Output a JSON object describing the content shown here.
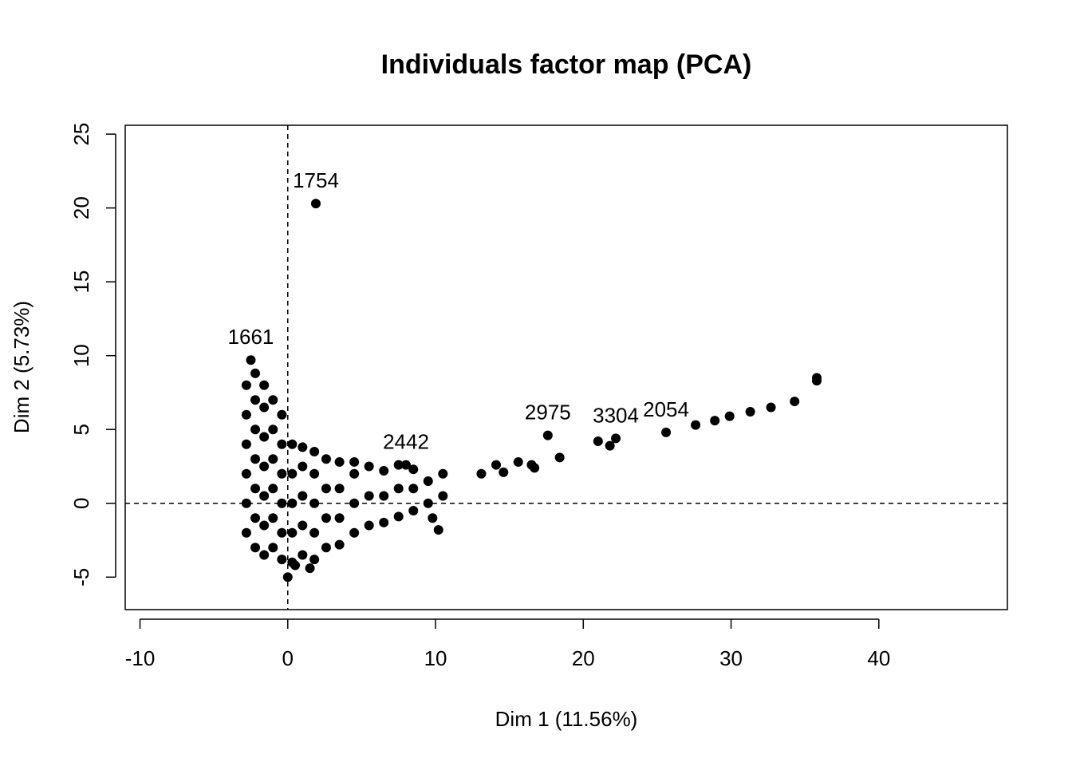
{
  "chart_data": {
    "type": "scatter",
    "title": "Individuals factor map (PCA)",
    "x_label": "Dim 1 (11.56%)",
    "y_label": "Dim 2 (5.73%)",
    "xlim": [
      -11,
      48.7
    ],
    "ylim": [
      -7.2,
      25.6
    ],
    "xticks": [
      -10,
      0,
      10,
      20,
      30,
      40
    ],
    "yticks": [
      -5,
      0,
      5,
      10,
      15,
      20,
      25
    ],
    "hlines": [
      0
    ],
    "vlines": [
      0
    ],
    "series": [
      {
        "color": "#000000",
        "x": [
          1.9,
          -2.5,
          25.6,
          8.0,
          17.6,
          22.2,
          27.6,
          28.9,
          29.9,
          31.3,
          32.7,
          34.3,
          35.8,
          35.8,
          21.0,
          21.8,
          18.4,
          16.7,
          16.5,
          15.6,
          14.6,
          13.1,
          14.1,
          9.8,
          10.2,
          0.0,
          1.5,
          0.5,
          -2.8,
          -2.8,
          -2.8,
          -2.8,
          -2.8,
          -2.8,
          -2.2,
          -2.2,
          -2.2,
          -2.2,
          -2.2,
          -2.2,
          -2.2,
          -1.6,
          -1.6,
          -1.6,
          -1.6,
          -1.6,
          -1.6,
          -1.6,
          -1.0,
          -1.0,
          -1.0,
          -1.0,
          -1.0,
          -1.0,
          -0.4,
          -0.4,
          -0.4,
          -0.4,
          -0.4,
          -0.4,
          0.3,
          0.3,
          0.3,
          0.3,
          0.3,
          1.0,
          1.0,
          1.0,
          1.0,
          1.0,
          1.8,
          1.8,
          1.8,
          1.8,
          1.8,
          2.6,
          2.6,
          2.6,
          2.6,
          3.5,
          3.5,
          3.5,
          3.5,
          4.5,
          4.5,
          4.5,
          4.5,
          5.5,
          5.5,
          5.5,
          6.5,
          6.5,
          6.5,
          7.5,
          7.5,
          7.5,
          8.5,
          8.5,
          8.5,
          9.5,
          9.5,
          10.5,
          10.5
        ],
        "values": [
          20.3,
          9.7,
          4.8,
          2.6,
          4.6,
          4.4,
          5.3,
          5.6,
          5.9,
          6.2,
          6.5,
          6.9,
          8.3,
          8.5,
          4.2,
          3.9,
          3.1,
          2.4,
          2.6,
          2.8,
          2.1,
          2.0,
          2.6,
          -1.0,
          -1.8,
          -5.0,
          -4.4,
          -4.2,
          -2,
          0,
          2,
          4,
          6,
          8,
          -3,
          -1,
          1,
          3,
          5,
          7,
          8.8,
          -3.5,
          -1.5,
          0.5,
          2.5,
          4.5,
          6.5,
          8,
          -3,
          -1,
          1,
          3,
          5,
          7,
          -3.8,
          -2,
          0,
          2,
          4,
          6,
          -4,
          -2,
          0,
          2,
          4,
          -3.5,
          -1.5,
          0.5,
          2.5,
          3.8,
          -3.8,
          -2,
          0,
          2,
          3.5,
          -3,
          -1,
          1,
          3,
          -2.8,
          -1,
          1,
          2.8,
          -2,
          0,
          2,
          2.8,
          -1.5,
          0.5,
          2.5,
          -1.3,
          0.5,
          2.2,
          -0.9,
          1,
          2.6,
          -0.5,
          1,
          2.3,
          0,
          1.5,
          0.5,
          2
        ],
        "labels": [
          "1754",
          "1661",
          "2054",
          "2442",
          "2975",
          "3304"
        ]
      }
    ]
  }
}
